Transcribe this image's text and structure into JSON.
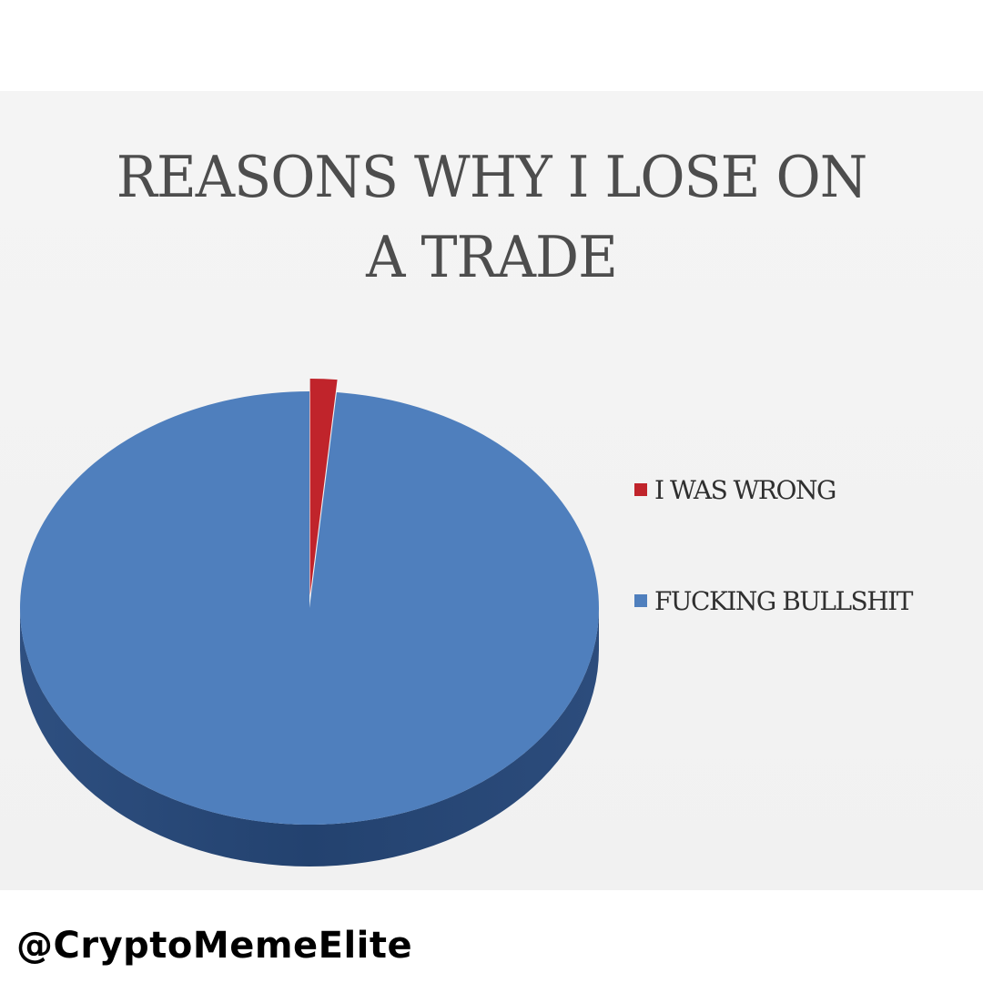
{
  "chart_data": {
    "type": "pie",
    "title": "REASONS WHY I LOSE ON A TRADE",
    "title_lines": [
      "REASONS WHY I LOSE ON",
      "A TRADE"
    ],
    "categories": [
      "I WAS WRONG",
      "FUCKING BULLSHIT"
    ],
    "values": [
      1.5,
      98.5
    ],
    "colors": [
      "#c0242b",
      "#4f7fbd"
    ],
    "legend_position": "right",
    "style": "3d-tilted"
  },
  "watermark": "@CryptoMemeElite"
}
